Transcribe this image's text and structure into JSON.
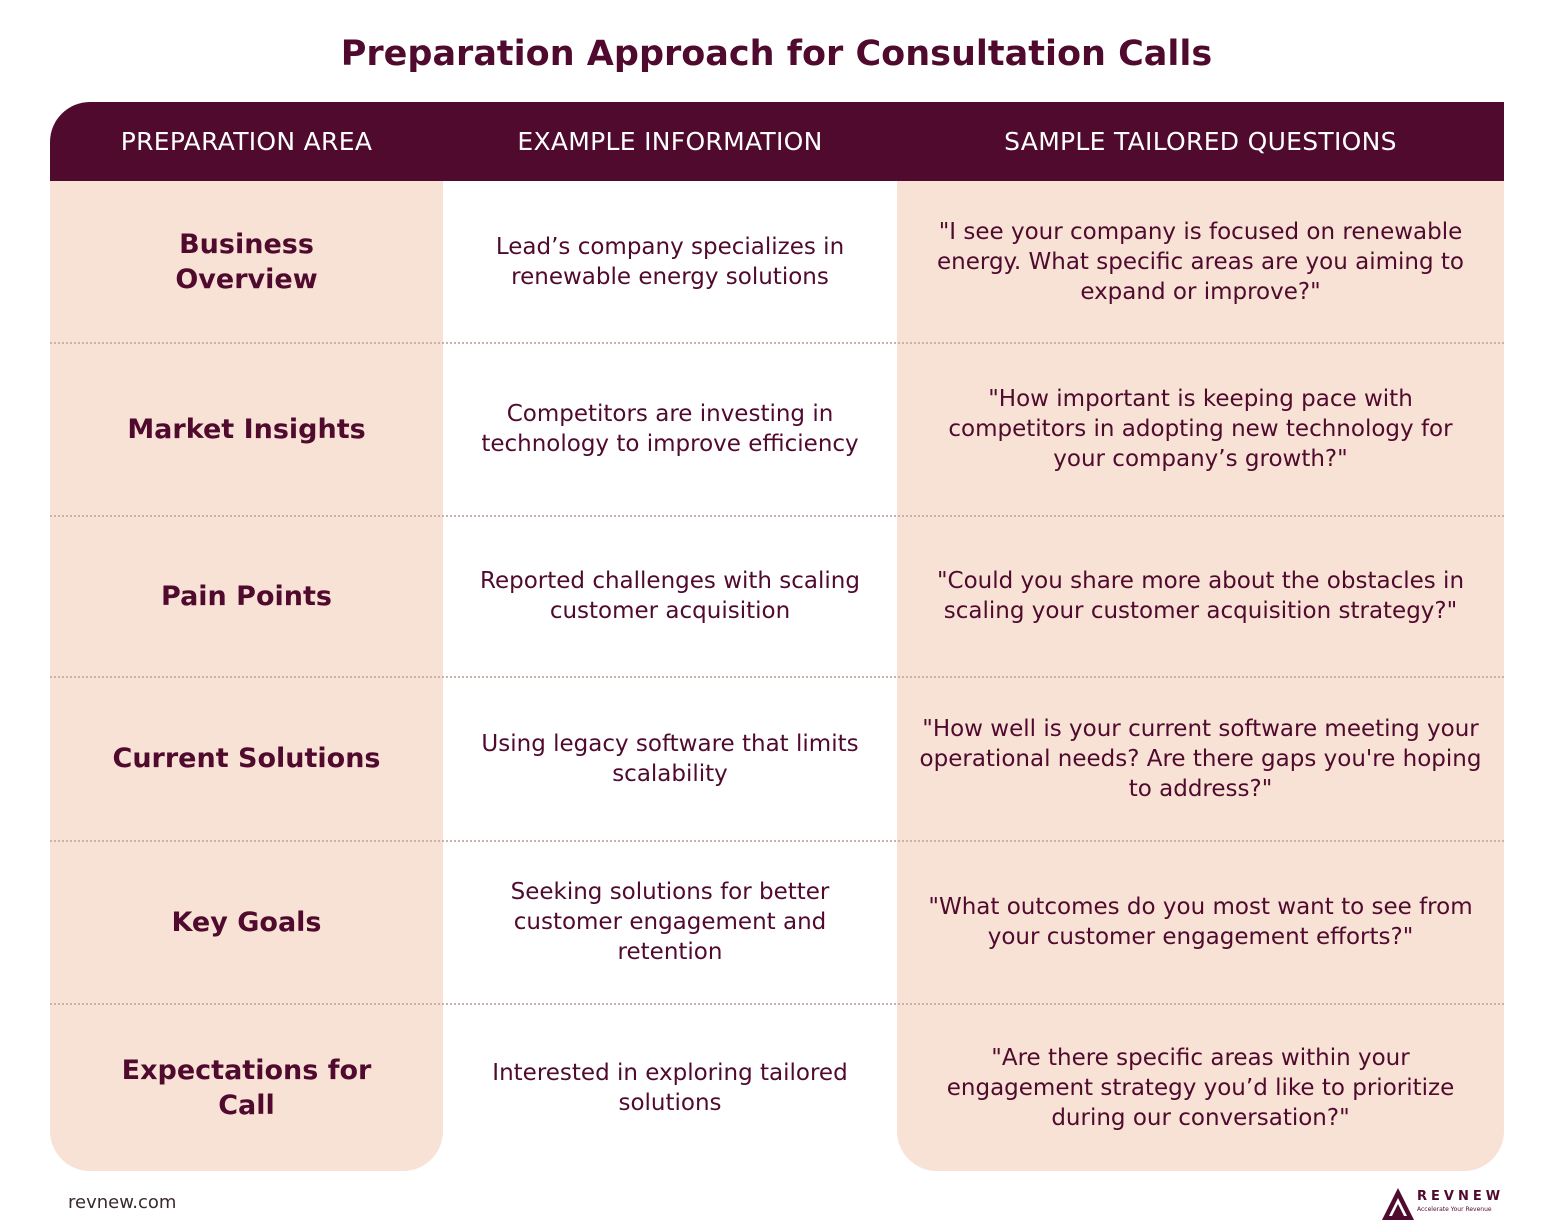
{
  "title": "Preparation Approach for Consultation Calls",
  "headers": [
    "PREPARATION AREA",
    "EXAMPLE INFORMATION",
    "SAMPLE TAILORED QUESTIONS"
  ],
  "rows": [
    {
      "area": "Business Overview",
      "info": "Lead’s company specializes in renewable energy solutions",
      "question": "\"I see your company is focused on renewable energy. What specific areas are you aiming to expand or improve?\""
    },
    {
      "area": "Market Insights",
      "info": "Competitors are investing in technology to improve efficiency",
      "question": "\"How important is keeping pace with competitors in adopting new technology for your company’s growth?\""
    },
    {
      "area": "Pain Points",
      "info": "Reported challenges with scaling customer acquisition",
      "question": "\"Could you share more about the obstacles in scaling your customer acquisition strategy?\""
    },
    {
      "area": "Current Solutions",
      "info": "Using legacy software that limits scalability",
      "question": "\"How well is your current software meeting your operational needs? Are there gaps you're hoping to address?\""
    },
    {
      "area": "Key Goals",
      "info": "Seeking solutions for better customer engagement and retention",
      "question": "\"What outcomes do you most want to see from your customer engagement efforts?\""
    },
    {
      "area": "Expectations for Call",
      "info": "Interested in exploring tailored solutions",
      "question": "\"Are there specific areas within your engagement strategy you’d like to prioritize during our conversation?\""
    }
  ],
  "footer": {
    "site": "revnew.com",
    "logo_name": "REVNEW",
    "logo_tagline": "Accelerate Your Revenue",
    "logo_icon": "mountain-logo-icon"
  },
  "colors": {
    "primary": "#4f0a2e",
    "cell_fill": "#f8e1d5",
    "background": "#ffffff"
  }
}
